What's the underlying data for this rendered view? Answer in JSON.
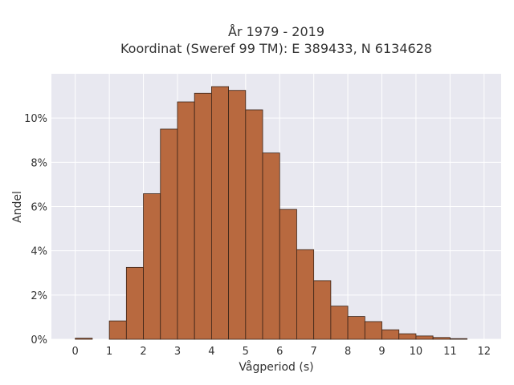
{
  "chart_data": {
    "type": "bar",
    "title_line1": "År 1979 - 2019",
    "title_line2": "Koordinat (Sweref 99 TM): E 389433, N 6134628",
    "xlabel": "Vågperiod (s)",
    "ylabel": "Andel",
    "bar_color": "#b8693f",
    "plot_bg": "#e8e8f0",
    "bin_width": 0.5,
    "x": [
      0,
      0.5,
      1,
      1.5,
      2,
      2.5,
      3,
      3.5,
      4,
      4.5,
      5,
      5.5,
      6,
      6.5,
      7,
      7.5,
      8,
      8.5,
      9,
      9.5,
      10,
      10.5,
      11,
      11.5
    ],
    "values": [
      0.05,
      0,
      0.83,
      3.25,
      6.58,
      9.5,
      10.73,
      11.12,
      11.42,
      11.25,
      10.37,
      8.42,
      5.87,
      4.05,
      2.65,
      1.5,
      1.03,
      0.8,
      0.43,
      0.25,
      0.15,
      0.08,
      0.03,
      0
    ],
    "xlim": [
      -0.7,
      12.5
    ],
    "ylim": [
      0,
      12
    ],
    "x_ticks": [
      0,
      1,
      2,
      3,
      4,
      5,
      6,
      7,
      8,
      9,
      10,
      11,
      12
    ],
    "x_tick_labels": [
      "0",
      "1",
      "2",
      "3",
      "4",
      "5",
      "6",
      "7",
      "8",
      "9",
      "10",
      "11",
      "12"
    ],
    "y_ticks": [
      0,
      2,
      4,
      6,
      8,
      10
    ],
    "y_tick_labels": [
      "0%",
      "2%",
      "4%",
      "6%",
      "8%",
      "10%"
    ],
    "grid": true
  }
}
